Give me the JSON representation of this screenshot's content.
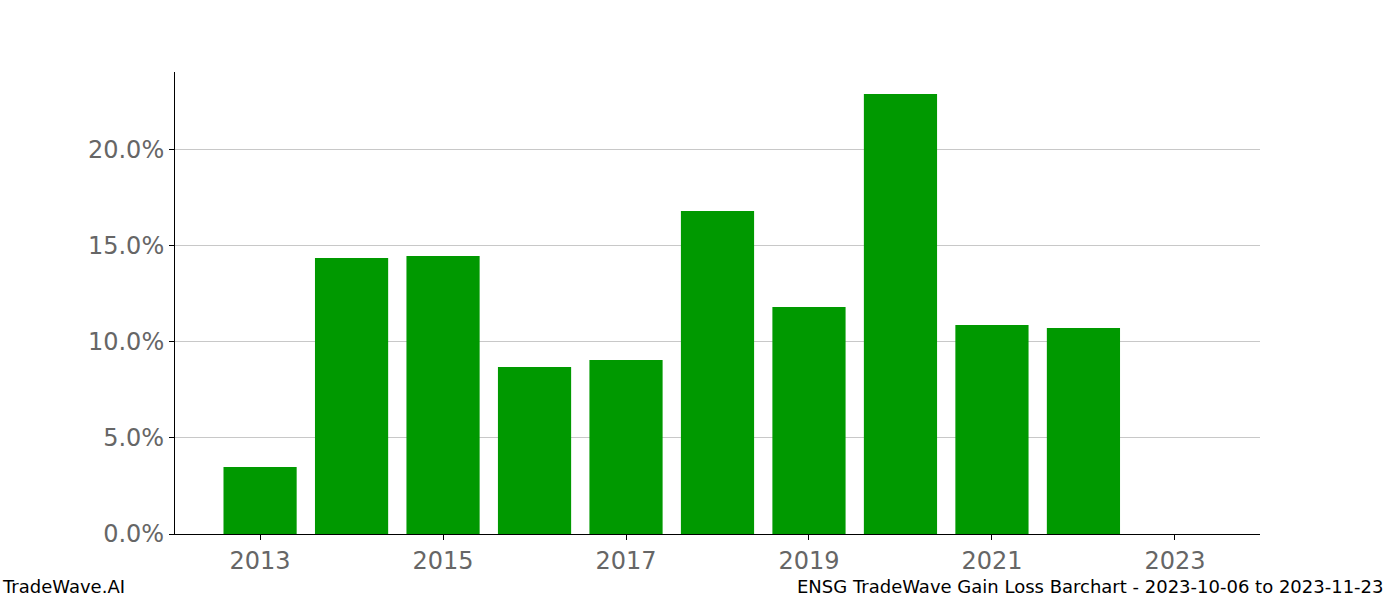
{
  "chart_data": {
    "type": "bar",
    "x": [
      2013,
      2014,
      2015,
      2016,
      2017,
      2018,
      2019,
      2020,
      2021,
      2022
    ],
    "values": [
      3.49,
      14.38,
      14.48,
      8.7,
      9.06,
      16.82,
      11.82,
      22.92,
      10.89,
      10.73
    ],
    "color": "#009900",
    "xlim": [
      2012.07,
      2023.93
    ],
    "xticks": [
      2013,
      2015,
      2017,
      2019,
      2021,
      2023
    ],
    "ylim": [
      0,
      24.06
    ],
    "yticks": [
      {
        "value": 0,
        "label": "0.0%"
      },
      {
        "value": 5,
        "label": "5.0%"
      },
      {
        "value": 10,
        "label": "10.0%"
      },
      {
        "value": 15,
        "label": "15.0%"
      },
      {
        "value": 20,
        "label": "20.0%"
      }
    ],
    "grid": true,
    "annotations": [
      "TradeWave.AI",
      "ENSG TradeWave Gain Loss Barchart - 2023-10-06 to 2023-11-23"
    ]
  }
}
